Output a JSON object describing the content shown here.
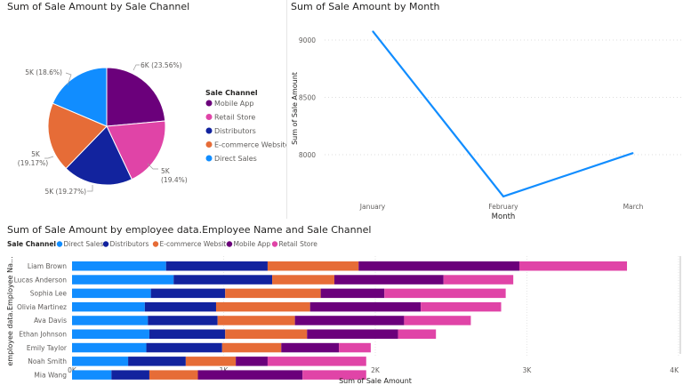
{
  "colors": {
    "Direct Sales": "#118DFF",
    "Distributors": "#12239E",
    "E-commerce Website": "#E66C37",
    "Mobile App": "#6B007B",
    "Retail Store": "#E044A7",
    "line": "#118DFF"
  },
  "chart_data": [
    {
      "type": "pie",
      "title": "Sum of Sale Amount by Sale Channel",
      "legend_title": "Sale Channel",
      "legend_placement": "right",
      "slices": [
        {
          "name": "Mobile App",
          "percent": 23.56,
          "label": "6K (23.56%)"
        },
        {
          "name": "Retail Store",
          "percent": 19.4,
          "label_line1": "5K",
          "label_line2": "(19.4%)"
        },
        {
          "name": "Distributors",
          "percent": 19.27,
          "label": "5K (19.27%)"
        },
        {
          "name": "E-commerce Website",
          "percent": 19.17,
          "label_line1": "5K",
          "label_line2": "(19.17%)"
        },
        {
          "name": "Direct Sales",
          "percent": 18.6,
          "label": "5K (18.6%)"
        }
      ]
    },
    {
      "type": "line",
      "title": "Sum of Sale Amount by Month",
      "xlabel": "Month",
      "ylabel": "Sum of Sale Amount",
      "categories": [
        "January",
        "February",
        "March"
      ],
      "values": [
        9078,
        7636,
        8015
      ],
      "yticks": [
        "8000",
        "8500",
        "9000"
      ],
      "ylim": [
        7636,
        9078
      ],
      "grid": true
    },
    {
      "type": "bar",
      "orientation": "horizontal-stacked",
      "title": "Sum of Sale Amount by employee data.Employee Name and Sale Channel",
      "legend_title": "Sale Channel",
      "legend_placement": "top-left",
      "xlabel": "Sum of Sale Amount",
      "ylabel": "employee data.Employee Na...",
      "xticks": [
        "0K",
        "1K",
        "2K",
        "3K",
        "4K"
      ],
      "xlim": [
        0,
        4000
      ],
      "categories": [
        "Liam Brown",
        "Lucas Anderson",
        "Sophia Lee",
        "Olivia Martinez",
        "Ava Davis",
        "Ethan Johnson",
        "Emily Taylor",
        "Noah Smith",
        "Mia Wang"
      ],
      "series": [
        {
          "name": "Direct Sales",
          "values": [
            620,
            670,
            520,
            480,
            500,
            510,
            490,
            370,
            260
          ]
        },
        {
          "name": "Distributors",
          "values": [
            670,
            650,
            490,
            470,
            460,
            500,
            500,
            380,
            250
          ]
        },
        {
          "name": "E-commerce Website",
          "values": [
            600,
            410,
            630,
            620,
            510,
            540,
            390,
            330,
            320
          ]
        },
        {
          "name": "Mobile App",
          "values": [
            1060,
            720,
            420,
            730,
            720,
            600,
            380,
            210,
            690
          ]
        },
        {
          "name": "Retail Store",
          "values": [
            710,
            460,
            800,
            530,
            440,
            250,
            210,
            650,
            420
          ]
        }
      ],
      "grid": true
    }
  ]
}
